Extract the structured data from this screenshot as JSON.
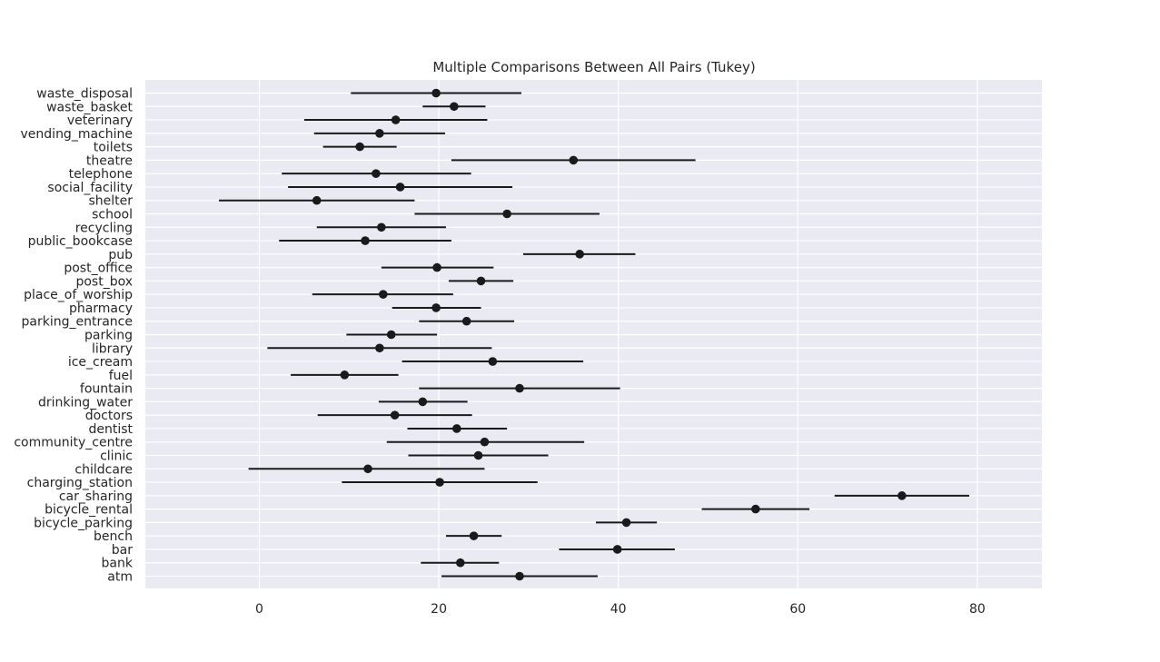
{
  "chart_data": {
    "type": "scatter",
    "title": "Multiple Comparisons Between All Pairs (Tukey)",
    "xlabel": "",
    "ylabel": "",
    "xlim": [
      -12.7,
      87.2
    ],
    "xticks": [
      0,
      20,
      40,
      60,
      80
    ],
    "grid": true,
    "categories": [
      "waste_disposal",
      "waste_basket",
      "veterinary",
      "vending_machine",
      "toilets",
      "theatre",
      "telephone",
      "social_facility",
      "shelter",
      "school",
      "recycling",
      "public_bookcase",
      "pub",
      "post_office",
      "post_box",
      "place_of_worship",
      "pharmacy",
      "parking_entrance",
      "parking",
      "library",
      "ice_cream",
      "fuel",
      "fountain",
      "drinking_water",
      "doctors",
      "dentist",
      "community_centre",
      "clinic",
      "childcare",
      "charging_station",
      "car_sharing",
      "bicycle_rental",
      "bicycle_parking",
      "bench",
      "bar",
      "bank",
      "atm"
    ],
    "means": [
      19.7,
      21.7,
      15.2,
      13.4,
      11.2,
      35.0,
      13.0,
      15.7,
      6.4,
      27.6,
      13.6,
      11.8,
      35.7,
      19.8,
      24.7,
      13.8,
      19.7,
      23.1,
      14.7,
      13.4,
      26.0,
      9.5,
      29.0,
      18.2,
      15.1,
      22.0,
      25.1,
      24.4,
      12.1,
      20.1,
      71.6,
      55.3,
      40.9,
      23.9,
      39.9,
      22.4,
      29.0
    ],
    "lower": [
      10.2,
      18.2,
      5.0,
      6.1,
      7.1,
      21.4,
      2.5,
      3.2,
      -4.5,
      17.3,
      6.4,
      2.2,
      29.4,
      13.6,
      21.1,
      5.9,
      14.8,
      17.8,
      9.7,
      0.9,
      15.9,
      3.5,
      17.8,
      13.3,
      6.5,
      16.5,
      14.2,
      16.6,
      -1.2,
      9.2,
      64.1,
      49.3,
      37.5,
      20.8,
      33.4,
      18.0,
      20.3
    ],
    "upper": [
      29.2,
      25.2,
      25.4,
      20.7,
      15.3,
      48.6,
      23.6,
      28.2,
      17.3,
      37.9,
      20.8,
      21.4,
      41.9,
      26.1,
      28.3,
      21.6,
      24.7,
      28.4,
      19.8,
      25.9,
      36.1,
      15.5,
      40.2,
      23.2,
      23.7,
      27.6,
      36.2,
      32.2,
      25.1,
      31.0,
      79.1,
      61.3,
      44.3,
      27.0,
      46.3,
      26.7,
      37.7
    ]
  }
}
